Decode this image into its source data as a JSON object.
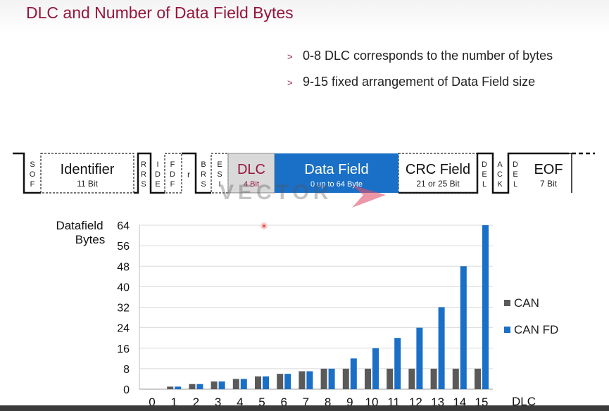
{
  "slide": {
    "title": "DLC and Number of Data Field Bytes",
    "bullets": [
      "0-8 DLC corresponds to the number of bytes",
      "9-15 fixed arrangement of Data Field size"
    ],
    "bullet_marker": ">"
  },
  "frame": {
    "fields": {
      "sof": [
        "S",
        "O",
        "F"
      ],
      "identifier": {
        "label": "Identifier",
        "sub": "11 Bit"
      },
      "rrs": [
        "R",
        "R",
        "S"
      ],
      "ide": [
        "I",
        "D",
        "E"
      ],
      "fdf": [
        "F",
        "D",
        "F"
      ],
      "r": "r",
      "brs": [
        "B",
        "R",
        "S"
      ],
      "esi": [
        "E",
        "S",
        "I"
      ],
      "dlc": {
        "label": "DLC",
        "sub": "4 Bit"
      },
      "data": {
        "label": "Data Field",
        "sub": "0 up to 64 Byte"
      },
      "crc": {
        "label": "CRC Field",
        "sub": "21 or 25 Bit"
      },
      "del1": [
        "D",
        "E",
        "L"
      ],
      "ack": [
        "A",
        "C",
        "K"
      ],
      "del2": [
        "D",
        "E",
        "L"
      ],
      "eof": {
        "label": "EOF",
        "sub": "7 Bit"
      }
    },
    "colors": {
      "dlc_fill": "#d9d9d9",
      "dlc_text": "#96163b",
      "data_fill": "#1a6fc6"
    }
  },
  "watermark": "VECTOR",
  "chart_data": {
    "type": "bar",
    "ylabel": [
      "Datafield",
      "Bytes"
    ],
    "xlabel": "DLC",
    "ylim": [
      0,
      64
    ],
    "yticks": [
      0,
      8,
      16,
      24,
      32,
      40,
      48,
      56,
      64
    ],
    "categories": [
      "0",
      "1",
      "2",
      "3",
      "4",
      "5",
      "6",
      "7",
      "8",
      "9",
      "10",
      "11",
      "12",
      "13",
      "14",
      "15"
    ],
    "series": [
      {
        "name": "CAN",
        "color": "#5a5a5a",
        "values": [
          0,
          1,
          2,
          3,
          4,
          5,
          6,
          7,
          8,
          8,
          8,
          8,
          8,
          8,
          8,
          8
        ]
      },
      {
        "name": "CAN FD",
        "color": "#1a6fc6",
        "values": [
          0,
          1,
          2,
          3,
          4,
          5,
          6,
          7,
          8,
          12,
          16,
          20,
          24,
          32,
          48,
          64
        ]
      }
    ],
    "grid": true,
    "legend": "right"
  }
}
